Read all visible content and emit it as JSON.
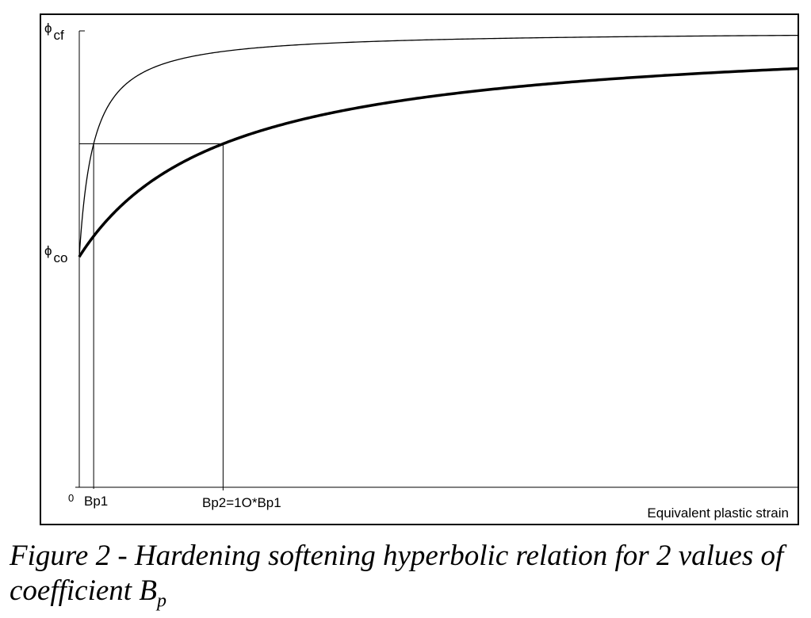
{
  "chart_data": {
    "type": "line",
    "xlabel": "Equivalent plastic strain",
    "ylabel": "",
    "x_tick_labels": [
      {
        "name": "origin",
        "label": "0",
        "value": 0
      },
      {
        "name": "bp1",
        "label": "Bp1",
        "value": 1
      },
      {
        "name": "bp2",
        "label": "Bp2=1O*Bp1",
        "value": 10
      }
    ],
    "y_tick_labels": [
      {
        "name": "phi-cf",
        "symbol": "ϕ",
        "subscript": "cf",
        "value": 1
      },
      {
        "name": "phi-co",
        "symbol": "ϕ",
        "subscript": "co",
        "value": 0
      }
    ],
    "xlim": [
      0,
      50
    ],
    "ylim": [
      -1.0,
      1.0
    ],
    "grid": false,
    "legend": "none",
    "series": [
      {
        "key": "bp1",
        "bp": 1,
        "stroke": "#000000",
        "width": 1.3
      },
      {
        "key": "bp2",
        "bp": 10,
        "stroke": "#000000",
        "width": 3.5
      }
    ],
    "reference_lines": {
      "level_y": 0.5,
      "x_values": [
        1,
        10
      ]
    }
  },
  "caption": {
    "line1": "Figure 2 - Hardening softening hyperbolic relation for 2 values of",
    "line2_prefix": "coefficient B",
    "line2_sub": "p"
  }
}
